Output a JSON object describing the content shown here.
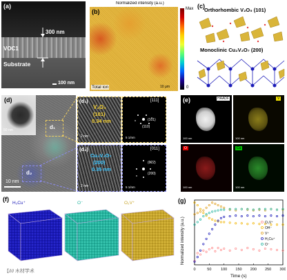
{
  "panels": {
    "a": {
      "label": "(a)",
      "thickness": "300 nm",
      "layer": "VOC1",
      "substrate": "Substrate",
      "scale": "100 nm"
    },
    "b": {
      "label": "(b)",
      "title": "Normalized intensity (a.u.)",
      "cb_max": "Max",
      "cb_min": "0",
      "caption": "Total ion",
      "scale": "10 μm"
    },
    "c": {
      "label": "(c)",
      "title1": "Orthorhombic V₂O₅ (101)",
      "title2": "Monoclinic Cu₂V₂O₇ (200)"
    },
    "d": {
      "label": "(d)",
      "scale_inset": "50 nm",
      "scale_main": "10 nm",
      "d1": "d₁",
      "d2": "d₂"
    },
    "d1": {
      "label": "(d₁)",
      "phase": "V₂O₅",
      "plane": "(101)",
      "spacing": "0.34 nm",
      "scale": "2 nm",
      "zone": "[111]",
      "spot1": "(101)",
      "spot2": "(110)",
      "fft_scale": "5 1/nm"
    },
    "d2": {
      "label": "(d₂)",
      "phase": "Cu₂V₂O₇",
      "plane": "(200)",
      "spacing": "0.35 nm",
      "scale": "2 nm",
      "zone": "[011]",
      "spot1": "(022)",
      "spot2": "(200)",
      "fft_scale": "5 1/nm"
    },
    "e": {
      "label": "(e)",
      "tags": [
        "HAADF",
        "V",
        "O",
        "Cu"
      ],
      "scales": [
        "100 nm",
        "100 nm",
        "100 nm",
        "100 nm"
      ]
    },
    "f": {
      "label": "(f)",
      "titles": [
        "H₂Cu⁺",
        "O⁻",
        "O₂V⁺"
      ]
    },
    "g": {
      "label": "(g)"
    }
  },
  "colors": {
    "cu": "#1a1ab8",
    "o": "#25b5a0",
    "v": "#c8a62c",
    "ov": "#ff8a8a",
    "oh": "#f0b400"
  },
  "watermark": "【∂∂ 木材学术",
  "chart_data": {
    "type": "scatter",
    "title": "",
    "xlabel": "Time (s)",
    "ylabel": "Normalized intensity (a.u.)",
    "xlim": [
      0,
      300
    ],
    "xticks": [
      "0",
      "50",
      "100",
      "150",
      "200",
      "250",
      "300"
    ],
    "legend_position": "right",
    "series": [
      {
        "name": "O₂V⁺",
        "color": "#ff8a8a",
        "x": [
          0,
          10,
          20,
          30,
          40,
          50,
          60,
          70,
          80,
          90,
          100,
          120,
          140,
          160,
          180,
          200,
          220,
          240,
          260,
          280,
          300
        ],
        "y": [
          0.06,
          0.18,
          0.16,
          0.22,
          0.2,
          0.24,
          0.26,
          0.21,
          0.26,
          0.23,
          0.25,
          0.22,
          0.25,
          0.23,
          0.26,
          0.24,
          0.22,
          0.25,
          0.24,
          0.23,
          0.22
        ]
      },
      {
        "name": "OH⁻",
        "color": "#f0b400",
        "x": [
          0,
          10,
          20,
          30,
          40,
          50,
          60,
          70,
          80,
          90,
          100,
          120,
          140,
          160,
          180,
          200,
          220,
          240,
          260,
          280,
          300
        ],
        "y": [
          0.96,
          0.92,
          0.86,
          0.8,
          0.76,
          0.72,
          0.7,
          0.68,
          0.67,
          0.66,
          0.66,
          0.65,
          0.64,
          0.64,
          0.63,
          0.64,
          0.63,
          0.63,
          0.62,
          0.62,
          0.62
        ]
      },
      {
        "name": "V⁺",
        "color": "#e0a020",
        "x": [
          0,
          10,
          20,
          30,
          40,
          50,
          60,
          70,
          80,
          90,
          100,
          120,
          140,
          160,
          180,
          200,
          220,
          240,
          260,
          280,
          300
        ],
        "y": [
          0.78,
          0.8,
          0.82,
          0.84,
          0.88,
          0.92,
          0.96,
          0.94,
          0.92,
          0.9,
          0.88,
          0.85,
          0.84,
          0.86,
          0.85,
          0.84,
          0.85,
          0.84,
          0.86,
          0.85,
          0.85
        ]
      },
      {
        "name": "H₂Cu⁺",
        "color": "#1a1ab8",
        "x": [
          0,
          10,
          20,
          30,
          40,
          50,
          60,
          70,
          80,
          90,
          100,
          120,
          140,
          160,
          180,
          200,
          220,
          240,
          260,
          280,
          300
        ],
        "y": [
          0.05,
          0.12,
          0.22,
          0.32,
          0.4,
          0.48,
          0.55,
          0.62,
          0.68,
          0.72,
          0.74,
          0.75,
          0.76,
          0.75,
          0.76,
          0.75,
          0.76,
          0.75,
          0.76,
          0.75,
          0.76
        ]
      },
      {
        "name": "O⁻",
        "color": "#25b5a0",
        "x": [
          0,
          10,
          20,
          30,
          40,
          50,
          60,
          70,
          80,
          90,
          100,
          120,
          140,
          160,
          180,
          200,
          220,
          240,
          260,
          280,
          300
        ],
        "y": [
          0.62,
          0.66,
          0.7,
          0.75,
          0.78,
          0.8,
          0.82,
          0.83,
          0.84,
          0.85,
          0.85,
          0.86,
          0.86,
          0.86,
          0.86,
          0.85,
          0.86,
          0.86,
          0.86,
          0.85,
          0.86
        ]
      }
    ]
  }
}
